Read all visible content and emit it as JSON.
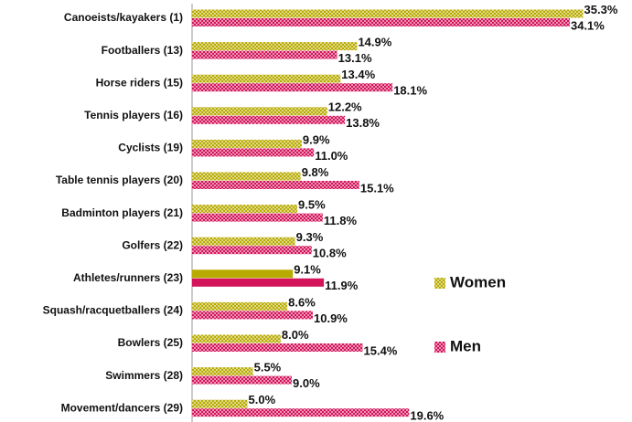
{
  "chart_data": {
    "type": "bar",
    "orientation": "horizontal",
    "categories": [
      "Canoeists/kayakers (1)",
      "Footballers (13)",
      "Horse riders (15)",
      "Tennis players (16)",
      "Cyclists (19)",
      "Table tennis players (20)",
      "Badminton players (21)",
      "Golfers (22)",
      "Athletes/runners (23)",
      "Squash/racquetballers (24)",
      "Bowlers (25)",
      "Swimmers (28)",
      "Movement/dancers (29)"
    ],
    "series": [
      {
        "name": "Women",
        "color": "#b8ab00",
        "values": [
          35.3,
          14.9,
          13.4,
          12.2,
          9.9,
          9.8,
          9.5,
          9.3,
          9.1,
          8.6,
          8.0,
          5.5,
          5.0
        ],
        "value_labels": [
          "35.3%",
          "14.9%",
          "13.4%",
          "12.2%",
          "9.9%",
          "9.8%",
          "9.5%",
          "9.3%",
          "9.1%",
          "8.6%",
          "8.0%",
          "5.5%",
          "5.0%"
        ]
      },
      {
        "name": "Men",
        "color": "#d4145a",
        "values": [
          34.1,
          13.1,
          18.1,
          13.8,
          11.0,
          15.1,
          11.8,
          10.8,
          11.9,
          10.9,
          15.4,
          9.0,
          19.6
        ],
        "value_labels": [
          "34.1%",
          "13.1%",
          "18.1%",
          "13.8%",
          "11.0%",
          "15.1%",
          "11.8%",
          "10.8%",
          "11.9%",
          "10.9%",
          "15.4%",
          "9.0%",
          "19.6%"
        ]
      }
    ],
    "highlight_category": "Athletes/runners (23)",
    "xlim": [
      0,
      36
    ],
    "legend": "right"
  }
}
